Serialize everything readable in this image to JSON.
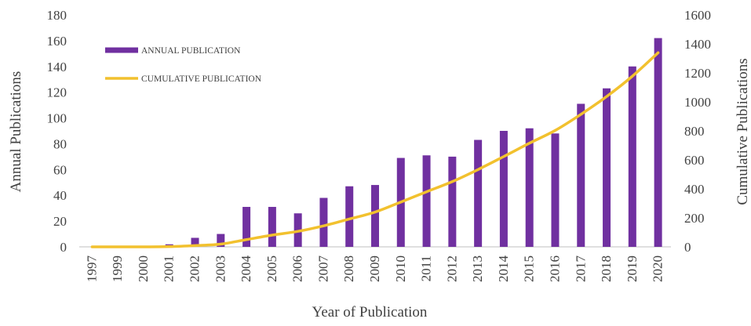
{
  "chart_data": {
    "type": "bar",
    "categories": [
      "1997",
      "1999",
      "2000",
      "2001",
      "2002",
      "2003",
      "2004",
      "2005",
      "2006",
      "2007",
      "2008",
      "2009",
      "2010",
      "2011",
      "2012",
      "2013",
      "2014",
      "2015",
      "2016",
      "2017",
      "2018",
      "2019",
      "2020"
    ],
    "series": [
      {
        "name": "ANNUAL PUBLICATION",
        "type": "bar",
        "axis": "left",
        "color": "#7030a0",
        "values": [
          0,
          0,
          0,
          2,
          7,
          10,
          31,
          31,
          26,
          38,
          47,
          48,
          69,
          71,
          70,
          83,
          90,
          92,
          88,
          111,
          123,
          140,
          162
        ]
      },
      {
        "name": "CUMULATIVE PUBLICATION",
        "type": "line",
        "axis": "right",
        "color": "#f2c12e",
        "values": [
          0,
          0,
          0,
          2,
          9,
          19,
          50,
          81,
          107,
          145,
          192,
          240,
          309,
          380,
          450,
          533,
          623,
          715,
          803,
          914,
          1037,
          1177,
          1339
        ]
      }
    ],
    "xlabel": "Year of Publication",
    "ylabel": "Annual Publications",
    "y2label": "Cumulative Publications",
    "ylim": [
      0,
      180
    ],
    "y2lim": [
      0,
      1600
    ],
    "yticks": [
      "0",
      "20",
      "40",
      "60",
      "80",
      "100",
      "120",
      "140",
      "160",
      "180"
    ],
    "y2ticks": [
      "0",
      "200",
      "400",
      "600",
      "800",
      "1000",
      "1200",
      "1400",
      "1600"
    ],
    "grid": false,
    "legend_position": "top-left"
  }
}
